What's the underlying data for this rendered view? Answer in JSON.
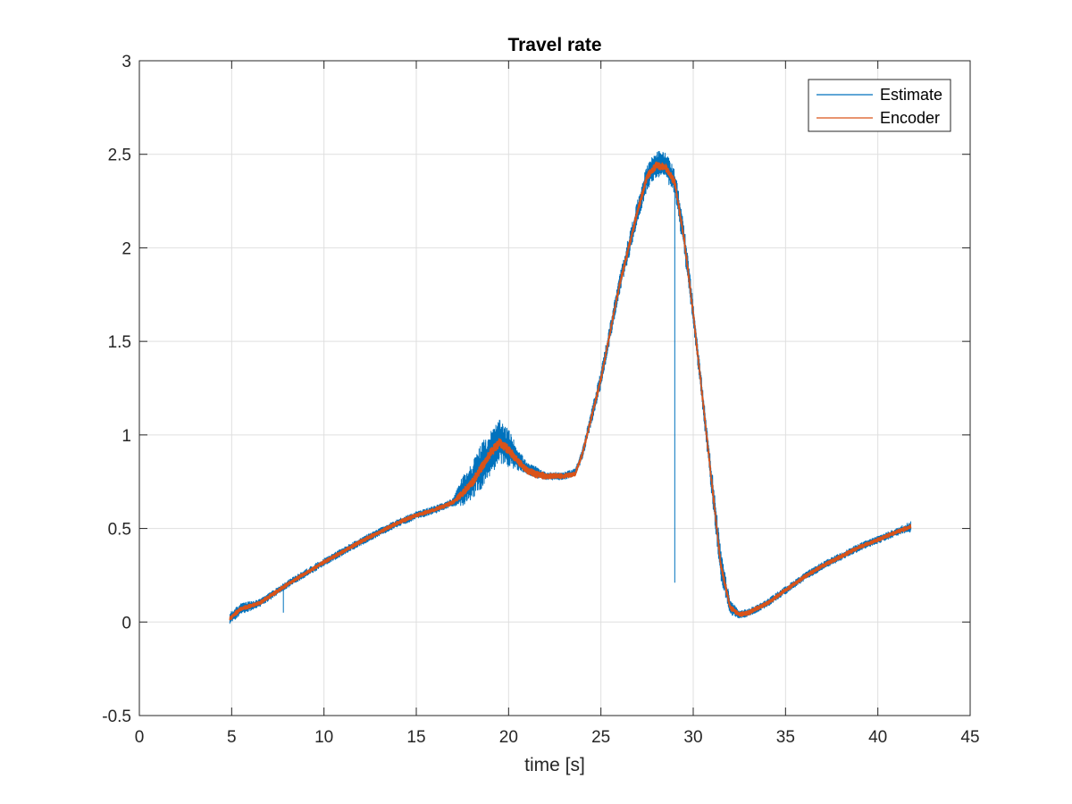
{
  "chart_data": {
    "type": "line",
    "title": "Travel rate",
    "xlabel": "time [s]",
    "ylabel": "",
    "xlim": [
      0,
      45
    ],
    "ylim": [
      -0.5,
      3
    ],
    "xticks": [
      0,
      5,
      10,
      15,
      20,
      25,
      30,
      35,
      40,
      45
    ],
    "yticks": [
      -0.5,
      0,
      0.5,
      1,
      1.5,
      2,
      2.5,
      3
    ],
    "xtick_labels": [
      "0",
      "5",
      "10",
      "15",
      "20",
      "25",
      "30",
      "35",
      "40",
      "45"
    ],
    "ytick_labels": [
      "-0.5",
      "0",
      "0.5",
      "1",
      "1.5",
      "2",
      "2.5",
      "3"
    ],
    "grid": true,
    "legend_position": "top-right",
    "series": [
      {
        "name": "Estimate",
        "color": "#0072BD",
        "x": [
          4.9,
          5.5,
          6.5,
          8,
          10,
          12,
          14,
          15,
          16,
          17,
          17.5,
          18,
          18.5,
          19,
          19.5,
          20,
          20.5,
          21,
          21.5,
          22,
          23,
          23.6,
          24,
          24.5,
          25,
          25.5,
          26,
          26.5,
          27,
          27.5,
          28,
          28.5,
          29,
          29.5,
          30,
          30.5,
          31,
          31.5,
          32,
          32.5,
          33,
          34,
          35,
          36,
          37,
          38,
          39,
          40,
          41,
          41.8
        ],
        "y": [
          0.02,
          0.07,
          0.1,
          0.2,
          0.32,
          0.43,
          0.53,
          0.57,
          0.6,
          0.64,
          0.7,
          0.75,
          0.83,
          0.9,
          0.96,
          0.93,
          0.87,
          0.82,
          0.8,
          0.78,
          0.78,
          0.8,
          0.9,
          1.1,
          1.3,
          1.55,
          1.8,
          2.0,
          2.2,
          2.38,
          2.45,
          2.44,
          2.35,
          2.05,
          1.65,
          1.2,
          0.75,
          0.3,
          0.08,
          0.04,
          0.05,
          0.1,
          0.17,
          0.24,
          0.3,
          0.35,
          0.4,
          0.44,
          0.48,
          0.51
        ],
        "noise_amplitude": [
          0.03,
          0.03,
          0.02,
          0.02,
          0.02,
          0.02,
          0.02,
          0.02,
          0.02,
          0.02,
          0.08,
          0.1,
          0.12,
          0.12,
          0.12,
          0.1,
          0.06,
          0.03,
          0.03,
          0.02,
          0.02,
          0.02,
          0.03,
          0.04,
          0.05,
          0.05,
          0.05,
          0.06,
          0.06,
          0.07,
          0.07,
          0.07,
          0.07,
          0.08,
          0.06,
          0.06,
          0.08,
          0.08,
          0.04,
          0.02,
          0.02,
          0.02,
          0.02,
          0.02,
          0.02,
          0.02,
          0.02,
          0.02,
          0.02,
          0.03
        ],
        "spikes": [
          {
            "x": 7.8,
            "y": 0.05
          },
          {
            "x": 29.0,
            "y": 0.21
          }
        ]
      },
      {
        "name": "Encoder",
        "color": "#D95319",
        "x": [
          4.9,
          5.5,
          6.5,
          8,
          10,
          12,
          14,
          15,
          16,
          17,
          17.5,
          18,
          18.5,
          19,
          19.5,
          20,
          20.5,
          21,
          21.5,
          22,
          23,
          23.6,
          24,
          24.5,
          25,
          25.5,
          26,
          26.5,
          27,
          27.5,
          28,
          28.5,
          29,
          29.5,
          30,
          30.5,
          31,
          31.5,
          32,
          32.5,
          33,
          34,
          35,
          36,
          37,
          38,
          39,
          40,
          41,
          41.8
        ],
        "y": [
          0.02,
          0.07,
          0.1,
          0.2,
          0.32,
          0.43,
          0.53,
          0.57,
          0.6,
          0.64,
          0.69,
          0.74,
          0.82,
          0.9,
          0.96,
          0.92,
          0.86,
          0.81,
          0.79,
          0.78,
          0.78,
          0.79,
          0.9,
          1.1,
          1.3,
          1.55,
          1.8,
          2.0,
          2.2,
          2.38,
          2.44,
          2.43,
          2.35,
          2.05,
          1.65,
          1.2,
          0.75,
          0.3,
          0.08,
          0.04,
          0.05,
          0.1,
          0.17,
          0.24,
          0.3,
          0.35,
          0.4,
          0.44,
          0.48,
          0.51
        ],
        "noise_amplitude": [
          0.012,
          0.012,
          0.01,
          0.01,
          0.01,
          0.01,
          0.01,
          0.01,
          0.01,
          0.012,
          0.02,
          0.025,
          0.025,
          0.025,
          0.025,
          0.025,
          0.02,
          0.02,
          0.02,
          0.015,
          0.012,
          0.012,
          0.012,
          0.015,
          0.015,
          0.015,
          0.015,
          0.02,
          0.02,
          0.02,
          0.02,
          0.02,
          0.02,
          0.02,
          0.02,
          0.02,
          0.02,
          0.02,
          0.015,
          0.012,
          0.012,
          0.01,
          0.01,
          0.01,
          0.01,
          0.01,
          0.01,
          0.01,
          0.01,
          0.012
        ]
      }
    ]
  }
}
